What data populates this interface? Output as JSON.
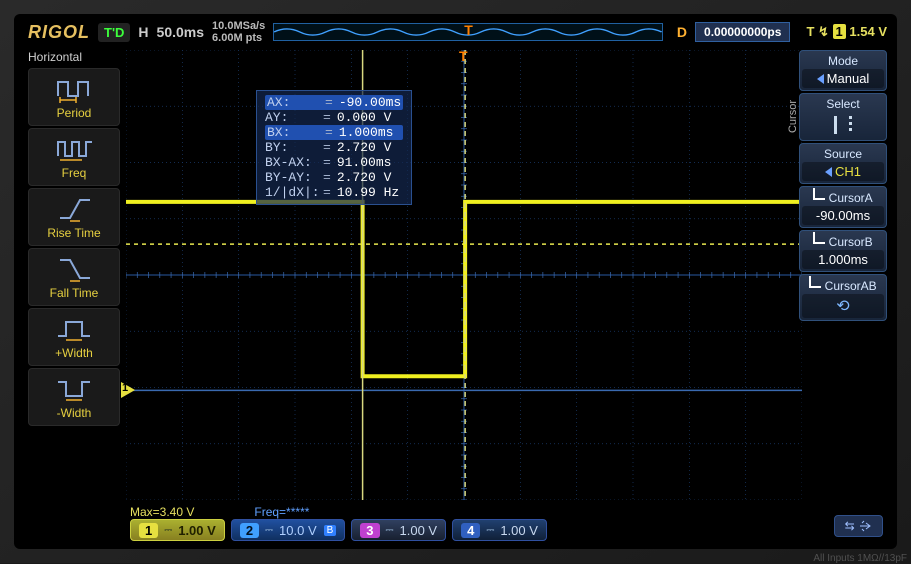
{
  "brand": "RIGOL",
  "top": {
    "td": "T'D",
    "h": "H",
    "hval": "50.0ms",
    "sample_rate": "10.0MSa/s",
    "mem_depth": "6.00M pts",
    "d": "D",
    "dval": "0.00000000ps",
    "trig_t": "T",
    "trig_edge": "↯",
    "trig_ch": "1",
    "trig_level": "1.54 V"
  },
  "left": {
    "title": "Horizontal",
    "items": [
      {
        "label": "Period"
      },
      {
        "label": "Freq"
      },
      {
        "label": "Rise Time"
      },
      {
        "label": "Fall Time"
      },
      {
        "label": "+Width"
      },
      {
        "label": "-Width"
      }
    ]
  },
  "right": {
    "cursor_label": "Cursor",
    "mode": {
      "hdr": "Mode",
      "val": "Manual"
    },
    "select": {
      "hdr": "Select"
    },
    "source": {
      "hdr": "Source",
      "val": "CH1"
    },
    "cursorA": {
      "hdr": "CursorA",
      "val": "-90.00ms"
    },
    "cursorB": {
      "hdr": "CursorB",
      "val": "1.000ms"
    },
    "cursorAB": {
      "hdr": "CursorAB"
    }
  },
  "readout": [
    {
      "k": "AX:",
      "v": "-90.00ms",
      "hl": true
    },
    {
      "k": "AY:",
      "v": "0.000 V"
    },
    {
      "k": "BX:",
      "v": "1.000ms",
      "hl": true
    },
    {
      "k": "BY:",
      "v": "2.720 V"
    },
    {
      "k": "BX-AX:",
      "v": "91.00ms"
    },
    {
      "k": "BY-AY:",
      "v": "2.720 V"
    },
    {
      "k": "1/|dX|:",
      "v": "10.99 Hz"
    }
  ],
  "grid": {
    "cols": 12,
    "rows": 8,
    "grid_color": "#1a3a6a",
    "axis_color": "#3a6ab0",
    "cursorA_x_div": 4.2,
    "cursorB_x_div": 6.02,
    "cursor_color": "#e8e850",
    "trace_color": "#f0f020",
    "ground_div_y": 6.05,
    "high_div_y": 2.7,
    "low_div_y": 5.8,
    "ref_dash_y": 3.45,
    "trig_marker_x_div": 6.0
  },
  "stats": {
    "max": "Max=3.40 V",
    "freq": "Freq=*****"
  },
  "channels": [
    {
      "n": "1",
      "coupling": "⎓",
      "vdiv": "1.00 V",
      "cls": "ch1"
    },
    {
      "n": "2",
      "coupling": "⎓",
      "vdiv": "10.0 V",
      "cls": "ch2",
      "bw": "B"
    },
    {
      "n": "3",
      "coupling": "⎓",
      "vdiv": "1.00 V",
      "cls": "ch3"
    },
    {
      "n": "4",
      "coupling": "⎓",
      "vdiv": "1.00 V",
      "cls": "ch4"
    }
  ],
  "usb": "↔ USB",
  "footer": "All Inputs 1MΩ//13pF"
}
